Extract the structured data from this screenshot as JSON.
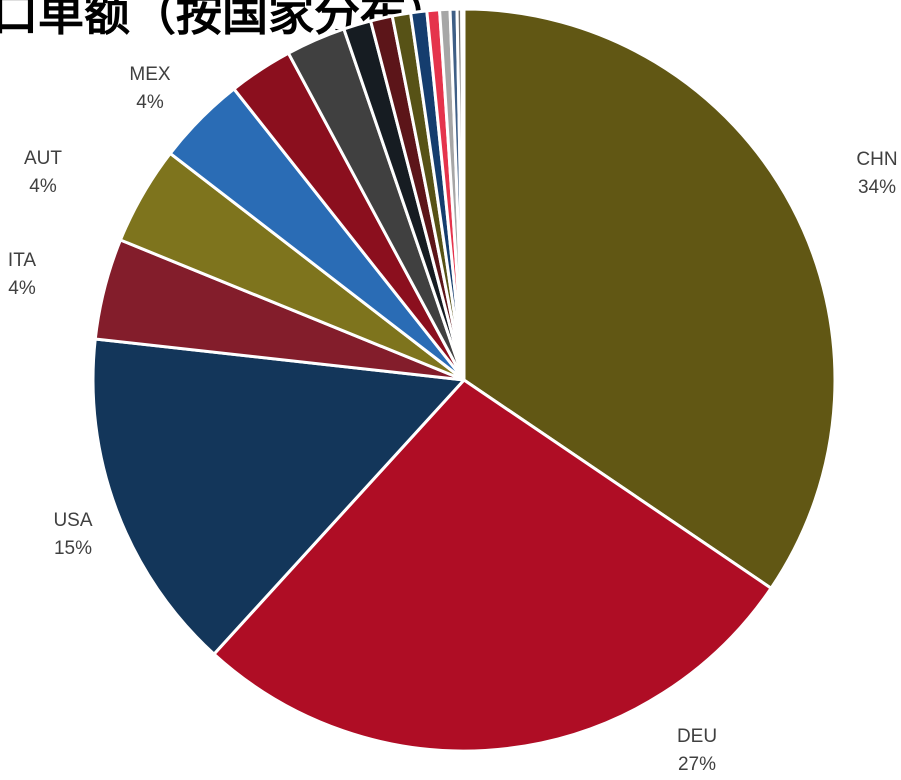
{
  "chart_data": {
    "type": "pie",
    "title": "口单额（按国家分布）",
    "start_angle_deg": 0,
    "direction": "clockwise",
    "slices": [
      {
        "name": "CHN",
        "label": "CHN",
        "pct": "34%",
        "value": 34.5,
        "color": "#615714"
      },
      {
        "name": "DEU",
        "label": "DEU",
        "pct": "27%",
        "value": 27.3,
        "color": "#AF0D25"
      },
      {
        "name": "USA",
        "label": "USA",
        "pct": "15%",
        "value": 15.0,
        "color": "#13365A"
      },
      {
        "name": "ITA",
        "label": "ITA",
        "pct": "4%",
        "value": 4.4,
        "color": "#831D2B"
      },
      {
        "name": "AUT",
        "label": "AUT",
        "pct": "4%",
        "value": 4.3,
        "color": "#7E741D"
      },
      {
        "name": "MEX",
        "label": "MEX",
        "pct": "4%",
        "value": 3.9,
        "color": "#2A6CB5"
      },
      {
        "name": "",
        "label": "",
        "pct": "",
        "value": 2.8,
        "color": "#8B0F1E"
      },
      {
        "name": "",
        "label": "",
        "pct": "",
        "value": 2.6,
        "color": "#404040"
      },
      {
        "name": "",
        "label": "",
        "pct": "",
        "value": 1.2,
        "color": "#161C22"
      },
      {
        "name": "",
        "label": "",
        "pct": "",
        "value": 0.95,
        "color": "#5C1519"
      },
      {
        "name": "",
        "label": "",
        "pct": "",
        "value": 0.8,
        "color": "#575216"
      },
      {
        "name": "",
        "label": "",
        "pct": "",
        "value": 0.7,
        "color": "#153D6E"
      },
      {
        "name": "",
        "label": "",
        "pct": "",
        "value": 0.55,
        "color": "#E5344C"
      },
      {
        "name": "",
        "label": "",
        "pct": "",
        "value": 0.45,
        "color": "#A6A6A6"
      },
      {
        "name": "",
        "label": "",
        "pct": "",
        "value": 0.3,
        "color": "#3F5F86"
      },
      {
        "name": "",
        "label": "",
        "pct": "",
        "value": 0.2,
        "color": "#6E6E6E"
      },
      {
        "name": "",
        "label": "",
        "pct": "",
        "value": 0.1,
        "color": "#F2A7B4"
      }
    ]
  }
}
